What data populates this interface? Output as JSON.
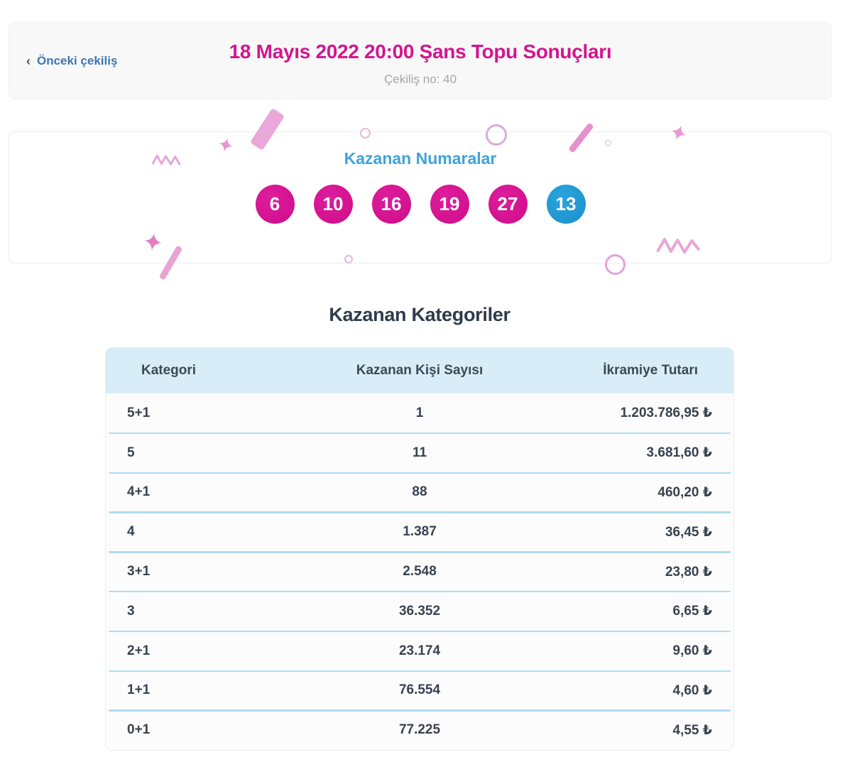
{
  "header": {
    "back_chevron": "‹",
    "back_label": "Önceki çekiliş",
    "title": "18 Mayıs 2022 20:00 Şans Topu Sonuçları",
    "draw_label": "Çekiliş no: 40"
  },
  "winning_numbers": {
    "title": "Kazanan Numaralar",
    "balls": [
      {
        "value": "6",
        "type": "main"
      },
      {
        "value": "10",
        "type": "main"
      },
      {
        "value": "16",
        "type": "main"
      },
      {
        "value": "19",
        "type": "main"
      },
      {
        "value": "27",
        "type": "main"
      },
      {
        "value": "13",
        "type": "bonus"
      }
    ]
  },
  "categories": {
    "title": "Kazanan Kategoriler",
    "columns": [
      "Kategori",
      "Kazanan Kişi Sayısı",
      "İkramiye Tutarı"
    ],
    "rows": [
      {
        "category": "5+1",
        "winners": "1",
        "prize": "1.203.786,95 ₺"
      },
      {
        "category": "5",
        "winners": "11",
        "prize": "3.681,60 ₺"
      },
      {
        "category": "4+1",
        "winners": "88",
        "prize": "460,20 ₺"
      },
      {
        "category": "4",
        "winners": "1.387",
        "prize": "36,45 ₺"
      },
      {
        "category": "3+1",
        "winners": "2.548",
        "prize": "23,80 ₺"
      },
      {
        "category": "3",
        "winners": "36.352",
        "prize": "6,65 ₺"
      },
      {
        "category": "2+1",
        "winners": "23.174",
        "prize": "9,60 ₺"
      },
      {
        "category": "1+1",
        "winners": "76.554",
        "prize": "4,60 ₺"
      },
      {
        "category": "0+1",
        "winners": "77.225",
        "prize": "4,55 ₺"
      }
    ]
  },
  "colors": {
    "title_magenta": "#d3158f",
    "link_blue": "#3d77b4",
    "numbers_title_blue": "#41a3d9",
    "main_ball": "#d0108b",
    "bonus_ball": "#1e97d4",
    "table_header_bg": "#d9edf8",
    "row_separator": "#aedcf2",
    "text_dark": "#343e4b",
    "subtitle_gray": "#a5a5a8",
    "confetti_pink": "#e9a6d6"
  }
}
